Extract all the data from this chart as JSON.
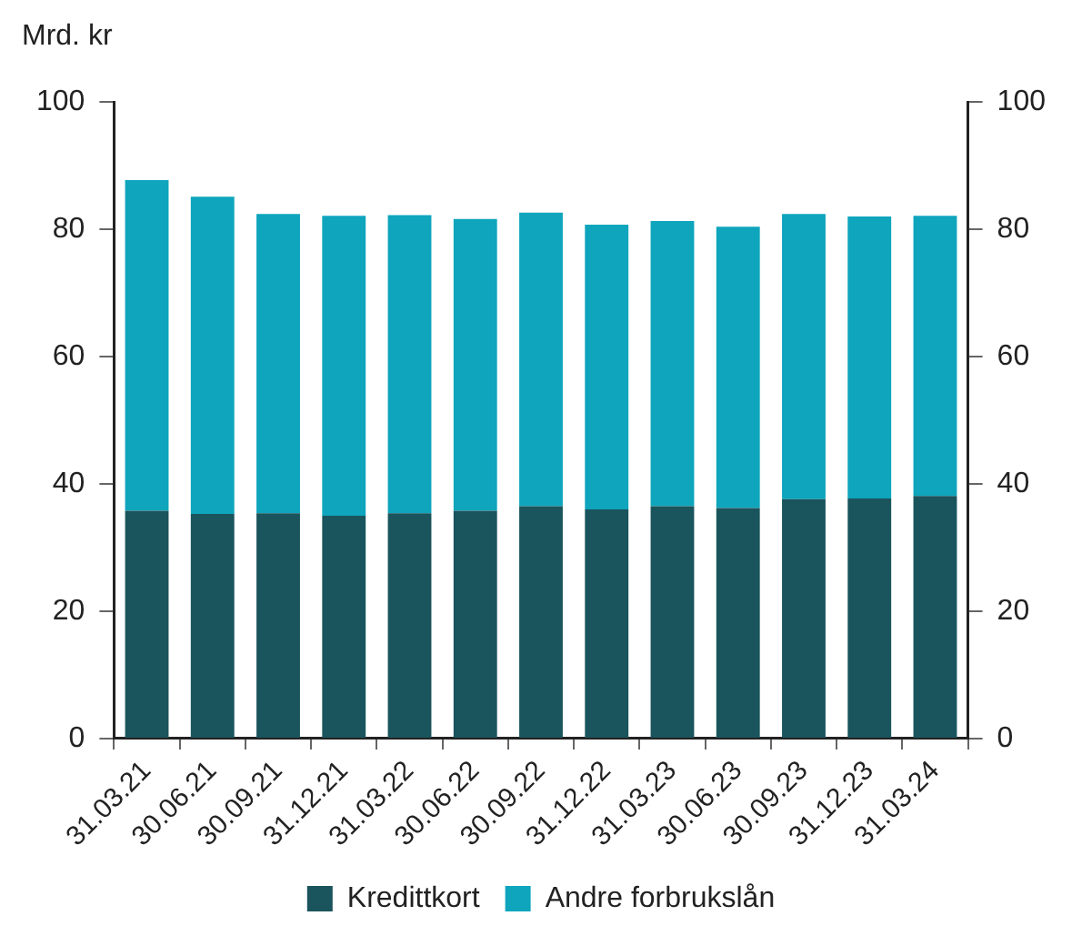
{
  "chart_data": {
    "type": "bar",
    "stacked": true,
    "ylabel": "Mrd. kr",
    "categories": [
      "31.03.21",
      "30.06.21",
      "30.09.21",
      "31.12.21",
      "31.03.22",
      "30.06.22",
      "30.09.22",
      "31.12.22",
      "31.03.23",
      "30.06.23",
      "30.09.23",
      "31.12.23",
      "31.03.24"
    ],
    "series": [
      {
        "name": "Kredittkort",
        "color": "#1a545c",
        "values": [
          35.8,
          35.3,
          35.4,
          35.0,
          35.4,
          35.8,
          36.5,
          36.0,
          36.5,
          36.2,
          37.6,
          37.7,
          38.1
        ]
      },
      {
        "name": "Andre forbrukslån",
        "color": "#0ea5bd",
        "values": [
          51.9,
          49.8,
          47.0,
          47.1,
          46.8,
          45.8,
          46.1,
          44.7,
          44.8,
          44.2,
          44.8,
          44.3,
          44.0
        ]
      }
    ],
    "ylim": [
      0,
      100
    ],
    "yticks": [
      0,
      20,
      40,
      60,
      80,
      100
    ],
    "y2lim": [
      0,
      100
    ],
    "y2ticks": [
      0,
      20,
      40,
      60,
      80,
      100
    ],
    "grid": false,
    "legend": "bottom"
  }
}
